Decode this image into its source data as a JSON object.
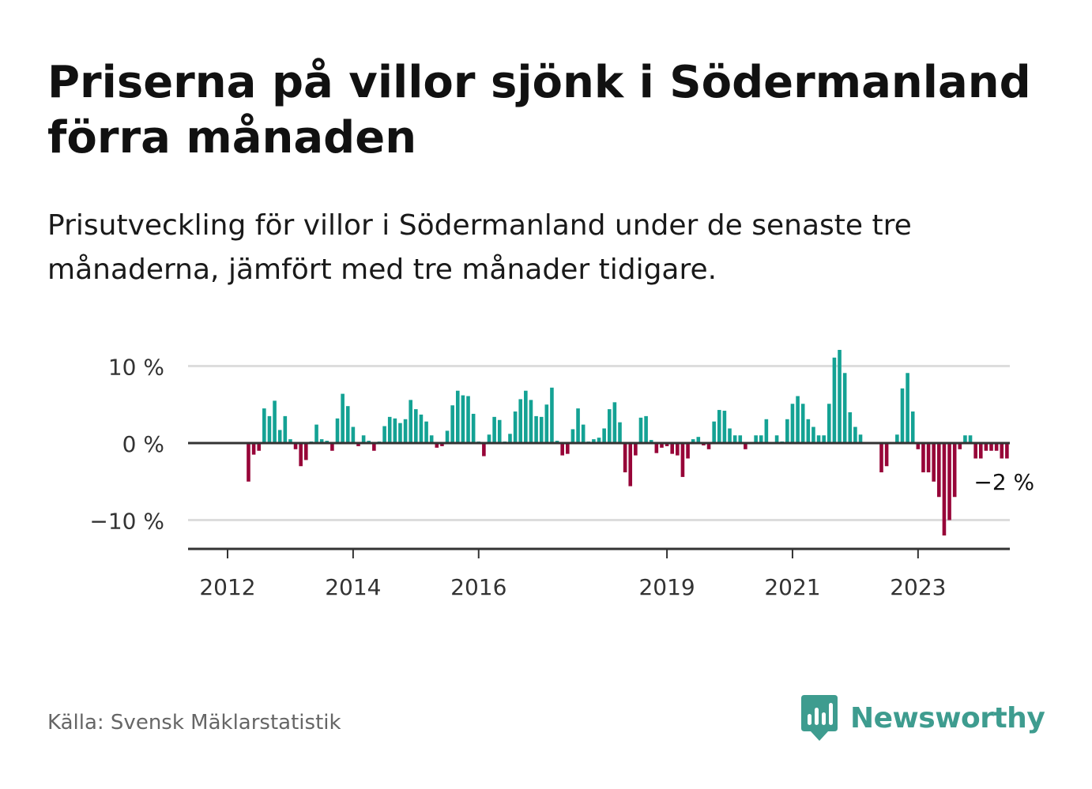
{
  "title": "Priserna på villor sjönk i Södermanland förra månaden",
  "subtitle": "Prisutveckling för villor i Södermanland under de senaste tre månaderna, jämfört med tre månader tidigare.",
  "source": "Källa: Svensk Mäklarstatistik",
  "brand": {
    "name": "Newsworthy",
    "icon": "newsworthy-logo-icon",
    "color": "#3e9c8f"
  },
  "colors": {
    "positive": "#14a294",
    "negative": "#970538",
    "grid": "#dddddd",
    "axis": "#333333"
  },
  "chart_data": {
    "type": "bar",
    "title": "",
    "xlabel": "",
    "ylabel": "",
    "ylim": [
      -13.5,
      10
    ],
    "y_ticks": [
      {
        "value": 10,
        "label": "10 %"
      },
      {
        "value": 0,
        "label": "0 %"
      },
      {
        "value": -10,
        "label": "−10 %"
      }
    ],
    "x_ticks": [
      "2012",
      "2014",
      "2016",
      "2019",
      "2021",
      "2023"
    ],
    "start": "2011-10",
    "annotation": {
      "text": "−2 %",
      "target": "last-bar"
    },
    "values": [
      null,
      null,
      null,
      null,
      null,
      null,
      null,
      -5,
      -1.5,
      -1,
      4.5,
      3.5,
      5.5,
      1.7,
      3.5,
      0.5,
      -0.8,
      -3,
      -2.2,
      0.2,
      2.4,
      0.5,
      0.3,
      -1,
      3.2,
      6.4,
      4.8,
      2.1,
      -0.4,
      1,
      0.3,
      -1,
      0.2,
      2.2,
      3.4,
      3.2,
      2.6,
      3.1,
      5.6,
      4.4,
      3.7,
      2.8,
      1,
      -0.6,
      -0.4,
      1.6,
      4.9,
      6.8,
      6.2,
      6.1,
      3.8,
      0.2,
      -1.7,
      1.1,
      3.4,
      3,
      0.2,
      1.2,
      4.1,
      5.7,
      6.8,
      5.6,
      3.5,
      3.4,
      5,
      7.2,
      0.3,
      -1.6,
      -1.4,
      1.8,
      4.5,
      2.4,
      0.2,
      0.5,
      0.7,
      1.9,
      4.4,
      5.3,
      2.7,
      -3.8,
      -5.6,
      -1.6,
      3.3,
      3.5,
      0.4,
      -1.3,
      -0.6,
      -0.4,
      -1.4,
      -1.6,
      -4.4,
      -2,
      0.5,
      0.8,
      -0.3,
      -0.8,
      2.8,
      4.3,
      4.2,
      1.9,
      1,
      1,
      -0.8,
      0.1,
      1,
      1,
      3.1,
      0.1,
      1,
      0.2,
      3.1,
      5.1,
      6.1,
      5.1,
      3.1,
      2.1,
      1,
      1,
      5.1,
      11.1,
      12.1,
      9.1,
      4,
      2.1,
      1.1,
      0.1,
      -0.1,
      -0.1,
      -3.8,
      -3,
      0.1,
      1.1,
      7.1,
      9.1,
      4.1,
      -0.8,
      -3.8,
      -3.8,
      -5,
      -7,
      -12,
      -10,
      -7,
      -0.8,
      1,
      1,
      -2,
      -2,
      -1,
      -1,
      -1,
      -2,
      -2,
      null,
      null,
      null,
      null,
      null
    ]
  }
}
